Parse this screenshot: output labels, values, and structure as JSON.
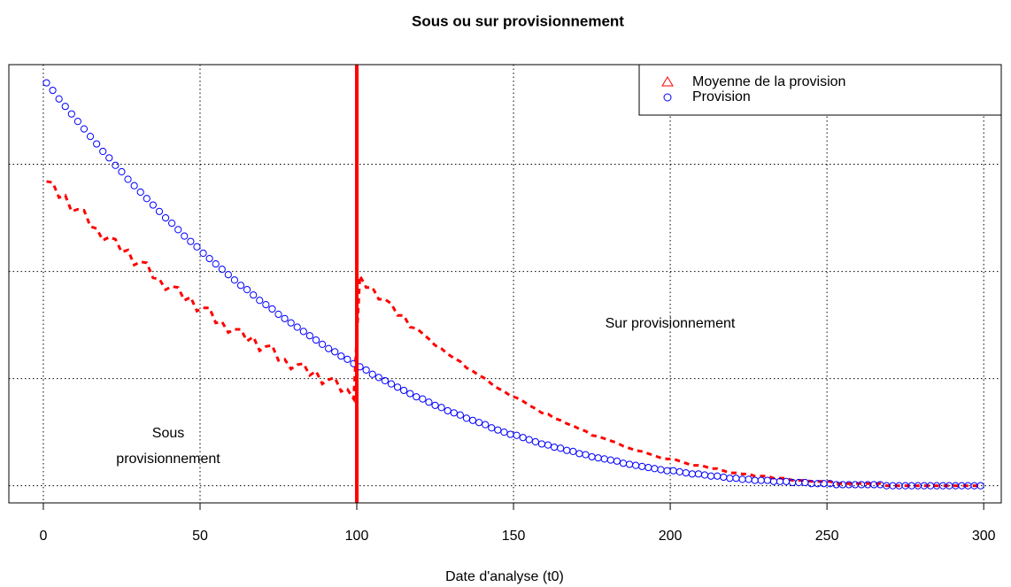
{
  "chart_data": {
    "type": "scatter",
    "title": "Sous ou sur provisionnement",
    "xlabel": "Date d'analyse (t0)",
    "xlim": [
      -11,
      305.6
    ],
    "ylim": [
      -0.16,
      3.93
    ],
    "xticks": [
      0,
      50,
      100,
      150,
      200,
      250,
      300
    ],
    "yticks": [
      0,
      1,
      2,
      3
    ],
    "grid": true,
    "legend": "top-right",
    "vline": {
      "x": 100,
      "color": "#ff0000"
    },
    "annotations": [
      [
        "Sur provisionnement"
      ],
      [
        "Sous",
        "provisionnement"
      ]
    ],
    "x": [
      1,
      3,
      5,
      7,
      9,
      11,
      13,
      15,
      17,
      19,
      21,
      23,
      25,
      27,
      29,
      31,
      33,
      35,
      37,
      39,
      41,
      43,
      45,
      47,
      49,
      51,
      53,
      55,
      57,
      59,
      61,
      63,
      65,
      67,
      69,
      71,
      73,
      75,
      77,
      79,
      81,
      83,
      85,
      87,
      89,
      91,
      93,
      95,
      97,
      99,
      101,
      103,
      105,
      107,
      109,
      111,
      113,
      115,
      117,
      119,
      121,
      123,
      125,
      127,
      129,
      131,
      133,
      135,
      137,
      139,
      141,
      143,
      145,
      147,
      149,
      151,
      153,
      155,
      157,
      159,
      161,
      163,
      165,
      167,
      169,
      171,
      173,
      175,
      177,
      179,
      181,
      183,
      185,
      187,
      189,
      191,
      193,
      195,
      197,
      199,
      201,
      203,
      205,
      207,
      209,
      211,
      213,
      215,
      217,
      219,
      221,
      223,
      225,
      227,
      229,
      231,
      233,
      235,
      237,
      239,
      241,
      243,
      245,
      247,
      249,
      251,
      253,
      255,
      257,
      259,
      261,
      263,
      265,
      267,
      269,
      271,
      273,
      275,
      277,
      279,
      281,
      283,
      285,
      287,
      289,
      291,
      293,
      295,
      297,
      299
    ],
    "series": [
      {
        "name": "Moyenne de la provision",
        "color": "#ff0000",
        "marker": "triangle",
        "linestyle": "dashed",
        "values": [
          2.84,
          2.83,
          2.69,
          2.71,
          2.56,
          2.58,
          2.57,
          2.42,
          2.4,
          2.29,
          2.32,
          2.3,
          2.18,
          2.2,
          2.06,
          2.09,
          2.08,
          1.94,
          1.93,
          1.83,
          1.86,
          1.85,
          1.73,
          1.76,
          1.63,
          1.66,
          1.66,
          1.52,
          1.53,
          1.43,
          1.46,
          1.46,
          1.35,
          1.39,
          1.26,
          1.3,
          1.31,
          1.17,
          1.18,
          1.09,
          1.13,
          1.14,
          1.03,
          1.07,
          0.95,
          0.99,
          1.01,
          0.88,
          0.9,
          0.81,
          1.96,
          1.85,
          1.85,
          1.74,
          1.74,
          1.7,
          1.59,
          1.59,
          1.48,
          1.47,
          1.42,
          1.37,
          1.31,
          1.28,
          1.23,
          1.19,
          1.16,
          1.1,
          1.07,
          1.03,
          1.0,
          0.95,
          0.91,
          0.88,
          0.84,
          0.82,
          0.79,
          0.75,
          0.72,
          0.68,
          0.67,
          0.63,
          0.61,
          0.58,
          0.56,
          0.53,
          0.51,
          0.47,
          0.46,
          0.44,
          0.42,
          0.4,
          0.37,
          0.35,
          0.33,
          0.32,
          0.3,
          0.28,
          0.26,
          0.25,
          0.25,
          0.23,
          0.21,
          0.19,
          0.19,
          0.18,
          0.16,
          0.16,
          0.14,
          0.12,
          0.12,
          0.11,
          0.11,
          0.09,
          0.09,
          0.09,
          0.07,
          0.07,
          0.07,
          0.05,
          0.05,
          0.05,
          0.04,
          0.04,
          0.04,
          0.04,
          0.02,
          0.02,
          0.02,
          0.02,
          0.02,
          0.02,
          0.02,
          0.02,
          0,
          0,
          0,
          0,
          0,
          0,
          0,
          0,
          0,
          0,
          0,
          0,
          0,
          0,
          0,
          0
        ]
      },
      {
        "name": "Provision",
        "color": "#0000ff",
        "marker": "circle",
        "linestyle": "none",
        "values": [
          3.76,
          3.69,
          3.61,
          3.54,
          3.47,
          3.4,
          3.33,
          3.26,
          3.19,
          3.12,
          3.06,
          2.99,
          2.93,
          2.86,
          2.8,
          2.74,
          2.68,
          2.62,
          2.56,
          2.5,
          2.45,
          2.39,
          2.33,
          2.28,
          2.23,
          2.17,
          2.12,
          2.07,
          2.02,
          1.97,
          1.92,
          1.87,
          1.83,
          1.78,
          1.73,
          1.69,
          1.65,
          1.6,
          1.56,
          1.52,
          1.48,
          1.44,
          1.4,
          1.36,
          1.32,
          1.28,
          1.25,
          1.21,
          1.18,
          1.14,
          1.11,
          1.08,
          1.04,
          1.01,
          0.98,
          0.95,
          0.92,
          0.89,
          0.86,
          0.83,
          0.81,
          0.78,
          0.75,
          0.73,
          0.7,
          0.68,
          0.66,
          0.63,
          0.61,
          0.59,
          0.57,
          0.54,
          0.52,
          0.5,
          0.48,
          0.47,
          0.45,
          0.43,
          0.41,
          0.39,
          0.38,
          0.36,
          0.35,
          0.33,
          0.32,
          0.3,
          0.29,
          0.27,
          0.26,
          0.25,
          0.24,
          0.23,
          0.21,
          0.2,
          0.19,
          0.18,
          0.17,
          0.16,
          0.15,
          0.14,
          0.14,
          0.13,
          0.12,
          0.11,
          0.11,
          0.1,
          0.09,
          0.09,
          0.08,
          0.07,
          0.07,
          0.06,
          0.06,
          0.05,
          0.05,
          0.05,
          0.04,
          0.04,
          0.04,
          0.03,
          0.03,
          0.03,
          0.02,
          0.02,
          0.02,
          0.02,
          0.01,
          0.01,
          0.01,
          0.01,
          0.01,
          0.01,
          0.01,
          0.01,
          0,
          0,
          0,
          0,
          0,
          0,
          0,
          0,
          0,
          0,
          0,
          0,
          0,
          0,
          0,
          0
        ]
      }
    ]
  }
}
